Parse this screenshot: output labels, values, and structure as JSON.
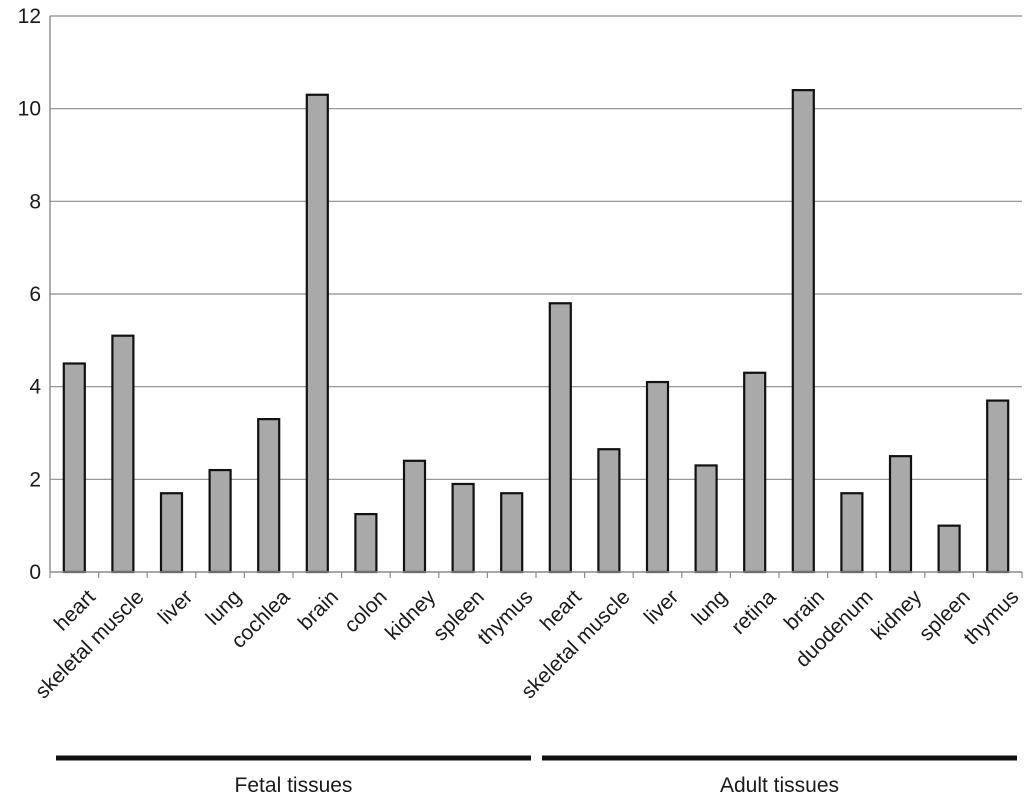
{
  "chart_data": {
    "type": "bar",
    "title": "",
    "xlabel": "",
    "ylabel": "",
    "ylim": [
      0,
      12
    ],
    "yticks": [
      0,
      2,
      4,
      6,
      8,
      10,
      12
    ],
    "grid": true,
    "bar_color": "#a9a9a9",
    "bar_edge_color": "#111111",
    "categories": [
      "heart",
      "skeletal muscle",
      "liver",
      "lung",
      "cochlea",
      "brain",
      "colon",
      "kidney",
      "spleen",
      "thymus",
      "heart",
      "skeletal muscle",
      "liver",
      "lung",
      "retina",
      "brain",
      "duodenum",
      "kidney",
      "spleen",
      "thymus"
    ],
    "values": [
      4.5,
      5.1,
      1.7,
      2.2,
      3.3,
      10.3,
      1.25,
      2.4,
      1.9,
      1.7,
      5.8,
      2.65,
      4.1,
      2.3,
      4.3,
      10.4,
      1.7,
      2.5,
      1.0,
      3.7
    ],
    "groups": [
      {
        "label": "Fetal tissues",
        "start": 0,
        "end": 9
      },
      {
        "label": "Adult tissues",
        "start": 10,
        "end": 19
      }
    ]
  }
}
